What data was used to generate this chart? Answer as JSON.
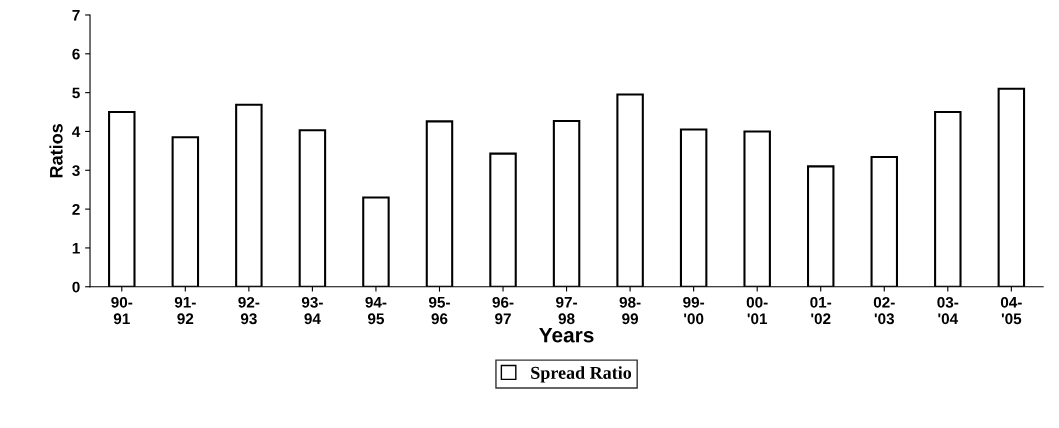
{
  "chart_data": {
    "type": "bar",
    "xlabel": "Years",
    "ylabel": "Ratios",
    "categories": [
      "90-\n91",
      "91-\n92",
      "92-\n93",
      "93-\n94",
      "94-\n95",
      "95-\n96",
      "96-\n97",
      "97-\n98",
      "98-\n99",
      "99-\n'00",
      "00-\n'01",
      "01-\n'02",
      "02-\n'03",
      "03-\n'04",
      "04-\n'05"
    ],
    "series": [
      {
        "name": "Spread Ratio",
        "color": "#ffffff",
        "values": [
          4.5,
          3.85,
          4.69,
          4.03,
          2.3,
          4.26,
          3.43,
          4.27,
          4.95,
          4.05,
          4.0,
          3.1,
          3.34,
          4.5,
          5.1
        ]
      }
    ],
    "ylim": [
      0,
      7
    ],
    "yticks": [
      0,
      1,
      2,
      3,
      4,
      5,
      6,
      7
    ],
    "grid": false,
    "legend": "bottom"
  }
}
